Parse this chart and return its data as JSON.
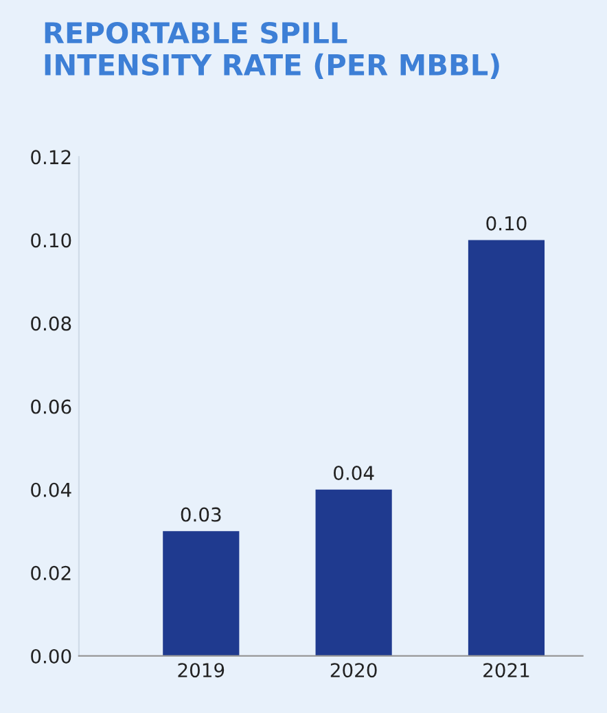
{
  "chart_data": {
    "type": "bar",
    "title": "REPORTABLE SPILL\nINTENSITY RATE (PER MBBL)",
    "categories": [
      "2019",
      "2020",
      "2021"
    ],
    "values": [
      0.03,
      0.04,
      0.1
    ],
    "color": "#1f3a8f",
    "ylim": [
      0,
      0.12
    ],
    "yticks": [
      {
        "value": 0,
        "label": "0.00"
      },
      {
        "value": 0.02,
        "label": "0.02"
      },
      {
        "value": 0.04,
        "label": "0.04"
      },
      {
        "value": 0.06,
        "label": "0.06"
      },
      {
        "value": 0.08,
        "label": "0.08"
      },
      {
        "value": 0.1,
        "label": "0.10"
      },
      {
        "value": 0.12,
        "label": "0.12"
      }
    ],
    "value_labels": [
      "0.03",
      "0.04",
      "0.10"
    ],
    "grid": false,
    "legend": false
  }
}
